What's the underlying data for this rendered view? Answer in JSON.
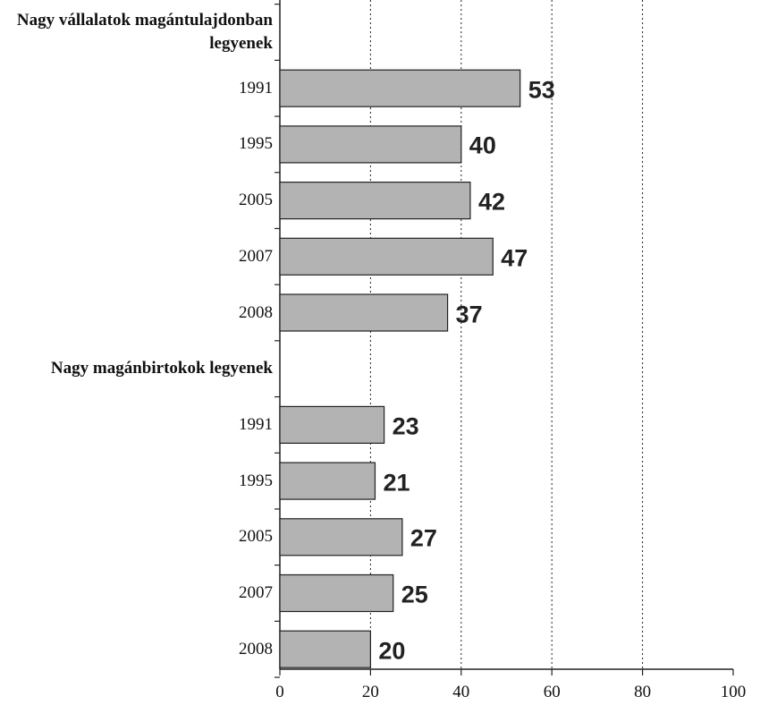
{
  "chart_data": {
    "type": "bar",
    "orientation": "horizontal",
    "categories": [
      "Nagy vállalatok magántulajdonban legyenek",
      "1991",
      "1995",
      "2005",
      "2007",
      "2008",
      "Nagy magánbirtokok legyenek",
      "1991",
      "1995",
      "2005",
      "2007",
      "2008"
    ],
    "values": [
      null,
      53,
      40,
      42,
      47,
      37,
      null,
      23,
      21,
      27,
      25,
      20
    ],
    "color": "#b3b3b3",
    "xlim": [
      0,
      100
    ],
    "xticks": [
      0,
      20,
      40,
      60,
      80,
      100
    ],
    "grid": true
  }
}
